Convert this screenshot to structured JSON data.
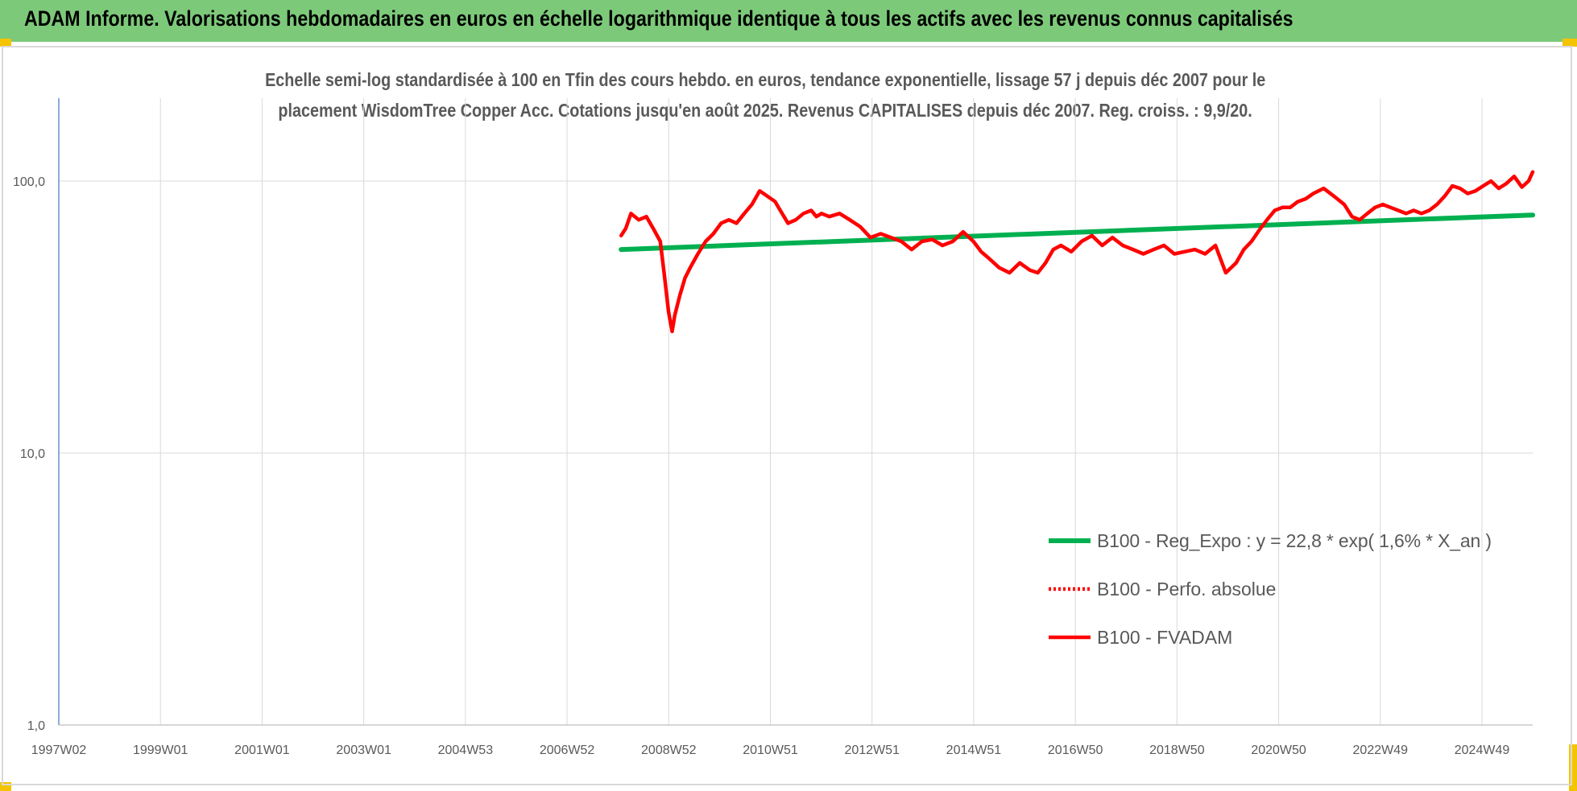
{
  "header": {
    "title": "ADAM Informe. Valorisations hebdomadaires en euros en échelle logarithmique identique à tous les actifs avec les revenus connus capitalisés"
  },
  "colors": {
    "banner": "#7dc97a",
    "trend": "#00b050",
    "fvadam": "#ff0000",
    "perfo": "#ff0000",
    "grid": "#d9d9d9",
    "text": "#595959"
  },
  "chart_data": {
    "type": "line",
    "title_line1": "Echelle semi-log standardisée à 100 en Tfin des cours hebdo. en euros, tendance exponentielle, lissage 57 j depuis déc 2007 pour le",
    "title_line2": "placement WisdomTree Copper Acc. Cotations jusqu'en août 2025. Revenus CAPITALISES depuis déc 2007. Reg. croiss. : 9,9/20.",
    "y_scale": "log",
    "ylim": [
      1,
      200
    ],
    "y_ticks": [
      "1,0",
      "10,0",
      "100,0"
    ],
    "y_tick_values": [
      1,
      10,
      100
    ],
    "xlim": [
      1997.04,
      2025.66
    ],
    "x_ticks": [
      "1997W02",
      "1999W01",
      "2001W01",
      "2003W01",
      "2004W53",
      "2006W52",
      "2008W52",
      "2010W51",
      "2012W51",
      "2014W51",
      "2016W50",
      "2018W50",
      "2020W50",
      "2022W49",
      "2024W49"
    ],
    "grid": true,
    "legend_position": "bottom-right",
    "series": [
      {
        "name": "B100 - Reg_Expo : y = 22,8 * exp( 1,6% *  X_an )",
        "style": "solid",
        "x": [
          2007.96,
          2025.66
        ],
        "y": [
          56,
          75
        ]
      },
      {
        "name": "B100 - Perfo. absolue",
        "style": "dotted",
        "x": [],
        "y": []
      },
      {
        "name": "B100 - FVADAM",
        "style": "solid",
        "x": [
          2007.96,
          2008.05,
          2008.15,
          2008.3,
          2008.45,
          2008.6,
          2008.72,
          2008.8,
          2008.88,
          2008.95,
          2009.0,
          2009.1,
          2009.2,
          2009.3,
          2009.45,
          2009.6,
          2009.75,
          2009.9,
          2010.05,
          2010.2,
          2010.35,
          2010.5,
          2010.65,
          2010.8,
          2010.95,
          2011.05,
          2011.2,
          2011.35,
          2011.5,
          2011.65,
          2011.75,
          2011.85,
          2012.0,
          2012.2,
          2012.4,
          2012.6,
          2012.8,
          2013.0,
          2013.2,
          2013.4,
          2013.6,
          2013.8,
          2014.0,
          2014.2,
          2014.4,
          2014.6,
          2014.8,
          2014.95,
          2015.1,
          2015.3,
          2015.5,
          2015.7,
          2015.9,
          2016.05,
          2016.2,
          2016.35,
          2016.5,
          2016.7,
          2016.9,
          2017.1,
          2017.3,
          2017.5,
          2017.7,
          2017.9,
          2018.1,
          2018.3,
          2018.5,
          2018.7,
          2018.9,
          2019.1,
          2019.3,
          2019.5,
          2019.7,
          2019.9,
          2020.05,
          2020.2,
          2020.35,
          2020.5,
          2020.65,
          2020.8,
          2020.95,
          2021.1,
          2021.25,
          2021.4,
          2021.6,
          2021.8,
          2022.0,
          2022.15,
          2022.3,
          2022.45,
          2022.6,
          2022.75,
          2022.9,
          2023.05,
          2023.2,
          2023.35,
          2023.5,
          2023.65,
          2023.8,
          2023.95,
          2024.1,
          2024.25,
          2024.4,
          2024.55,
          2024.7,
          2024.85,
          2025.0,
          2025.15,
          2025.3,
          2025.45,
          2025.58,
          2025.66
        ],
        "y": [
          63,
          67,
          76,
          72,
          74,
          66,
          60,
          45,
          33,
          28,
          32,
          38,
          44,
          48,
          54,
          60,
          64,
          70,
          72,
          70,
          76,
          82,
          92,
          88,
          84,
          78,
          70,
          72,
          76,
          78,
          74,
          76,
          74,
          76,
          72,
          68,
          62,
          64,
          62,
          60,
          56,
          60,
          61,
          58,
          60,
          65,
          60,
          55,
          52,
          48,
          46,
          50,
          47,
          46,
          50,
          56,
          58,
          55,
          60,
          63,
          58,
          62,
          58,
          56,
          54,
          56,
          58,
          54,
          55,
          56,
          54,
          58,
          46,
          50,
          56,
          60,
          66,
          72,
          78,
          80,
          80,
          84,
          86,
          90,
          94,
          88,
          82,
          74,
          72,
          76,
          80,
          82,
          80,
          78,
          76,
          78,
          76,
          78,
          82,
          88,
          96,
          94,
          90,
          92,
          96,
          100,
          94,
          98,
          104,
          95,
          100,
          108
        ]
      }
    ]
  }
}
